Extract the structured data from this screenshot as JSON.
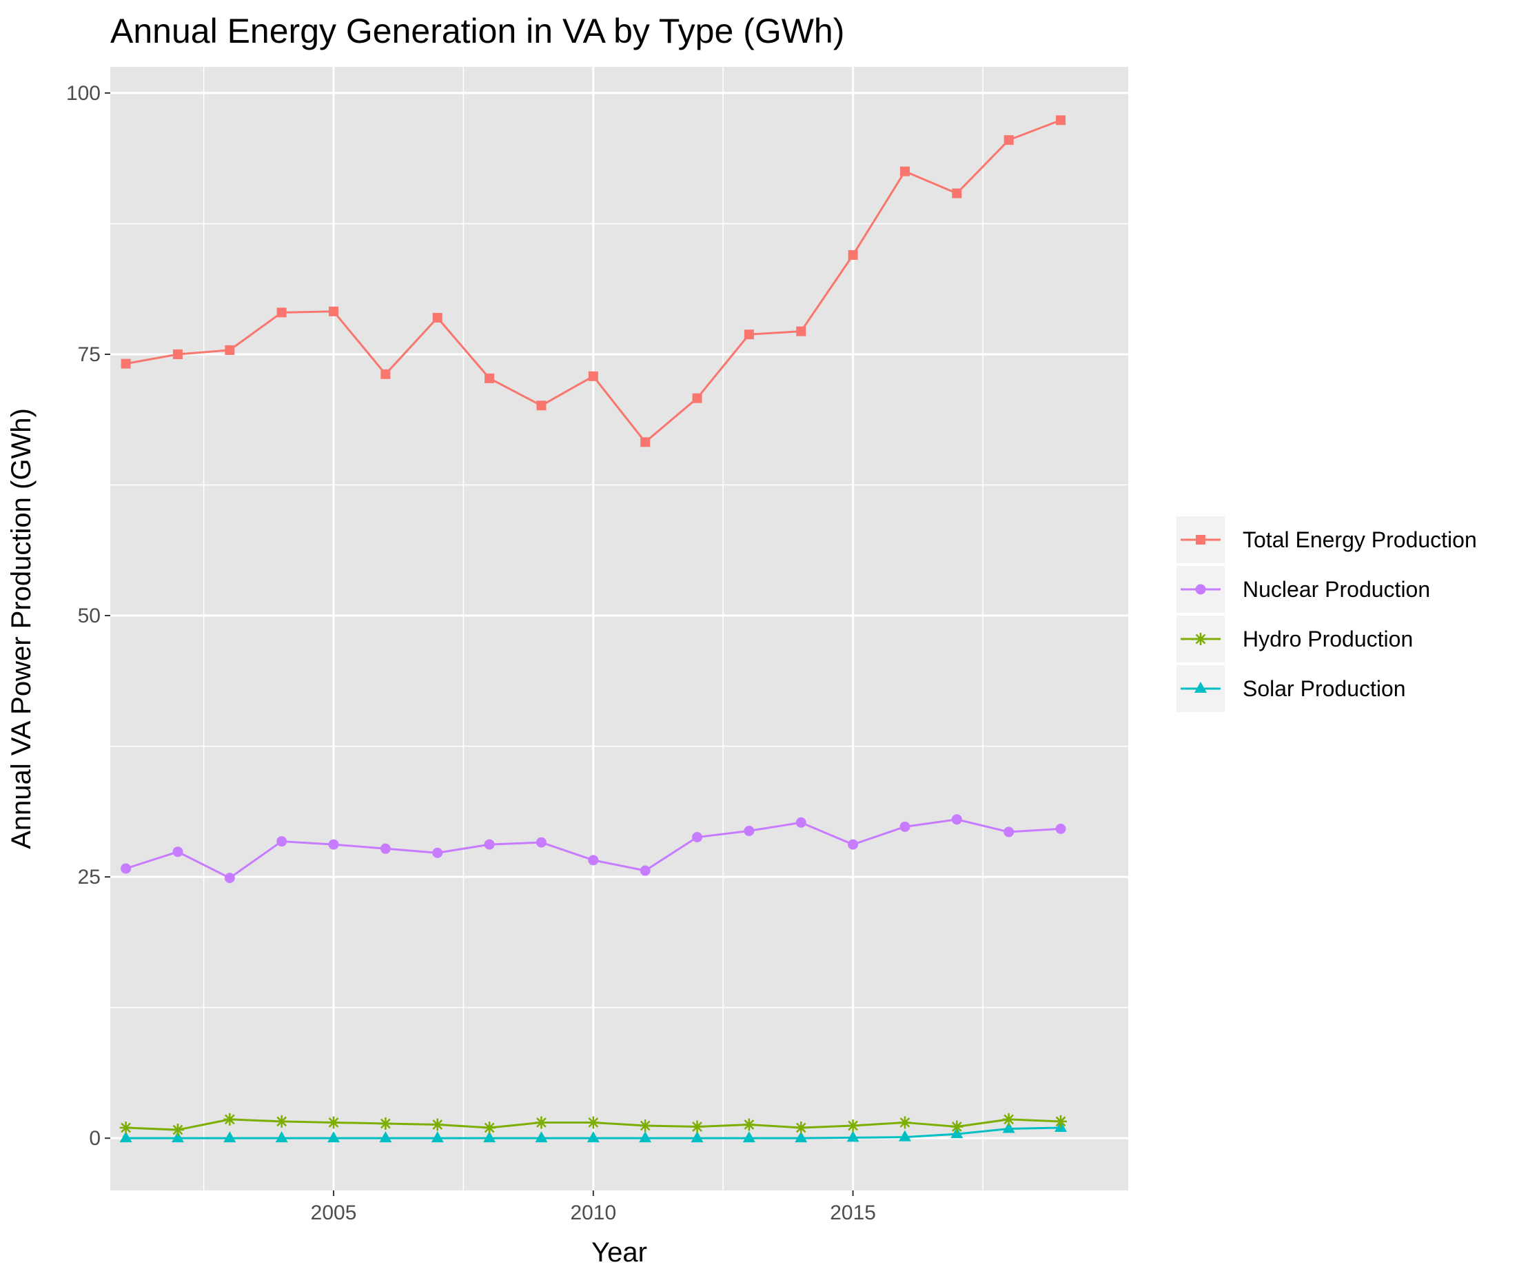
{
  "chart_data": {
    "type": "line",
    "title": "Annual Energy Generation in VA by Type (GWh)",
    "xlabel": "Year",
    "ylabel": "Annual VA Power Production (GWh)",
    "xlim": [
      2000.7,
      2020.3
    ],
    "ylim": [
      -5,
      102.5
    ],
    "x_ticks": [
      2005,
      2010,
      2015
    ],
    "y_ticks": [
      0,
      25,
      50,
      75,
      100
    ],
    "x_minor": [
      2002.5,
      2007.5,
      2012.5,
      2017.5
    ],
    "y_minor": [
      12.5,
      37.5,
      62.5,
      87.5
    ],
    "grid": true,
    "legend_position": "right",
    "panel_background": "#e5e5e5",
    "x": [
      2001,
      2002,
      2003,
      2004,
      2005,
      2006,
      2007,
      2008,
      2009,
      2010,
      2011,
      2012,
      2013,
      2014,
      2015,
      2016,
      2017,
      2018,
      2019
    ],
    "series": [
      {
        "name": "Total Energy Production",
        "color": "#f8766d",
        "marker": "square",
        "values": [
          74.1,
          75.0,
          75.4,
          79.0,
          79.1,
          73.1,
          78.5,
          72.7,
          70.1,
          72.9,
          66.6,
          70.8,
          76.9,
          77.2,
          84.5,
          92.5,
          90.4,
          95.5,
          97.4
        ]
      },
      {
        "name": "Nuclear Production",
        "color": "#c77cff",
        "marker": "circle",
        "values": [
          25.8,
          27.4,
          24.9,
          28.4,
          28.1,
          27.7,
          27.3,
          28.1,
          28.3,
          26.6,
          25.6,
          28.8,
          29.4,
          30.2,
          28.1,
          29.8,
          30.5,
          29.3,
          29.6
        ]
      },
      {
        "name": "Hydro Production",
        "color": "#7cae00",
        "marker": "asterisk",
        "values": [
          1.0,
          0.8,
          1.8,
          1.6,
          1.5,
          1.4,
          1.3,
          1.0,
          1.5,
          1.5,
          1.2,
          1.1,
          1.3,
          1.0,
          1.2,
          1.5,
          1.1,
          1.8,
          1.6
        ]
      },
      {
        "name": "Solar Production",
        "color": "#00bfc4",
        "marker": "triangle",
        "values": [
          0.0,
          0.0,
          0.0,
          0.0,
          0.0,
          0.0,
          0.0,
          0.0,
          0.0,
          0.0,
          0.0,
          0.0,
          0.0,
          0.0,
          0.05,
          0.1,
          0.4,
          0.9,
          1.0
        ]
      }
    ]
  }
}
